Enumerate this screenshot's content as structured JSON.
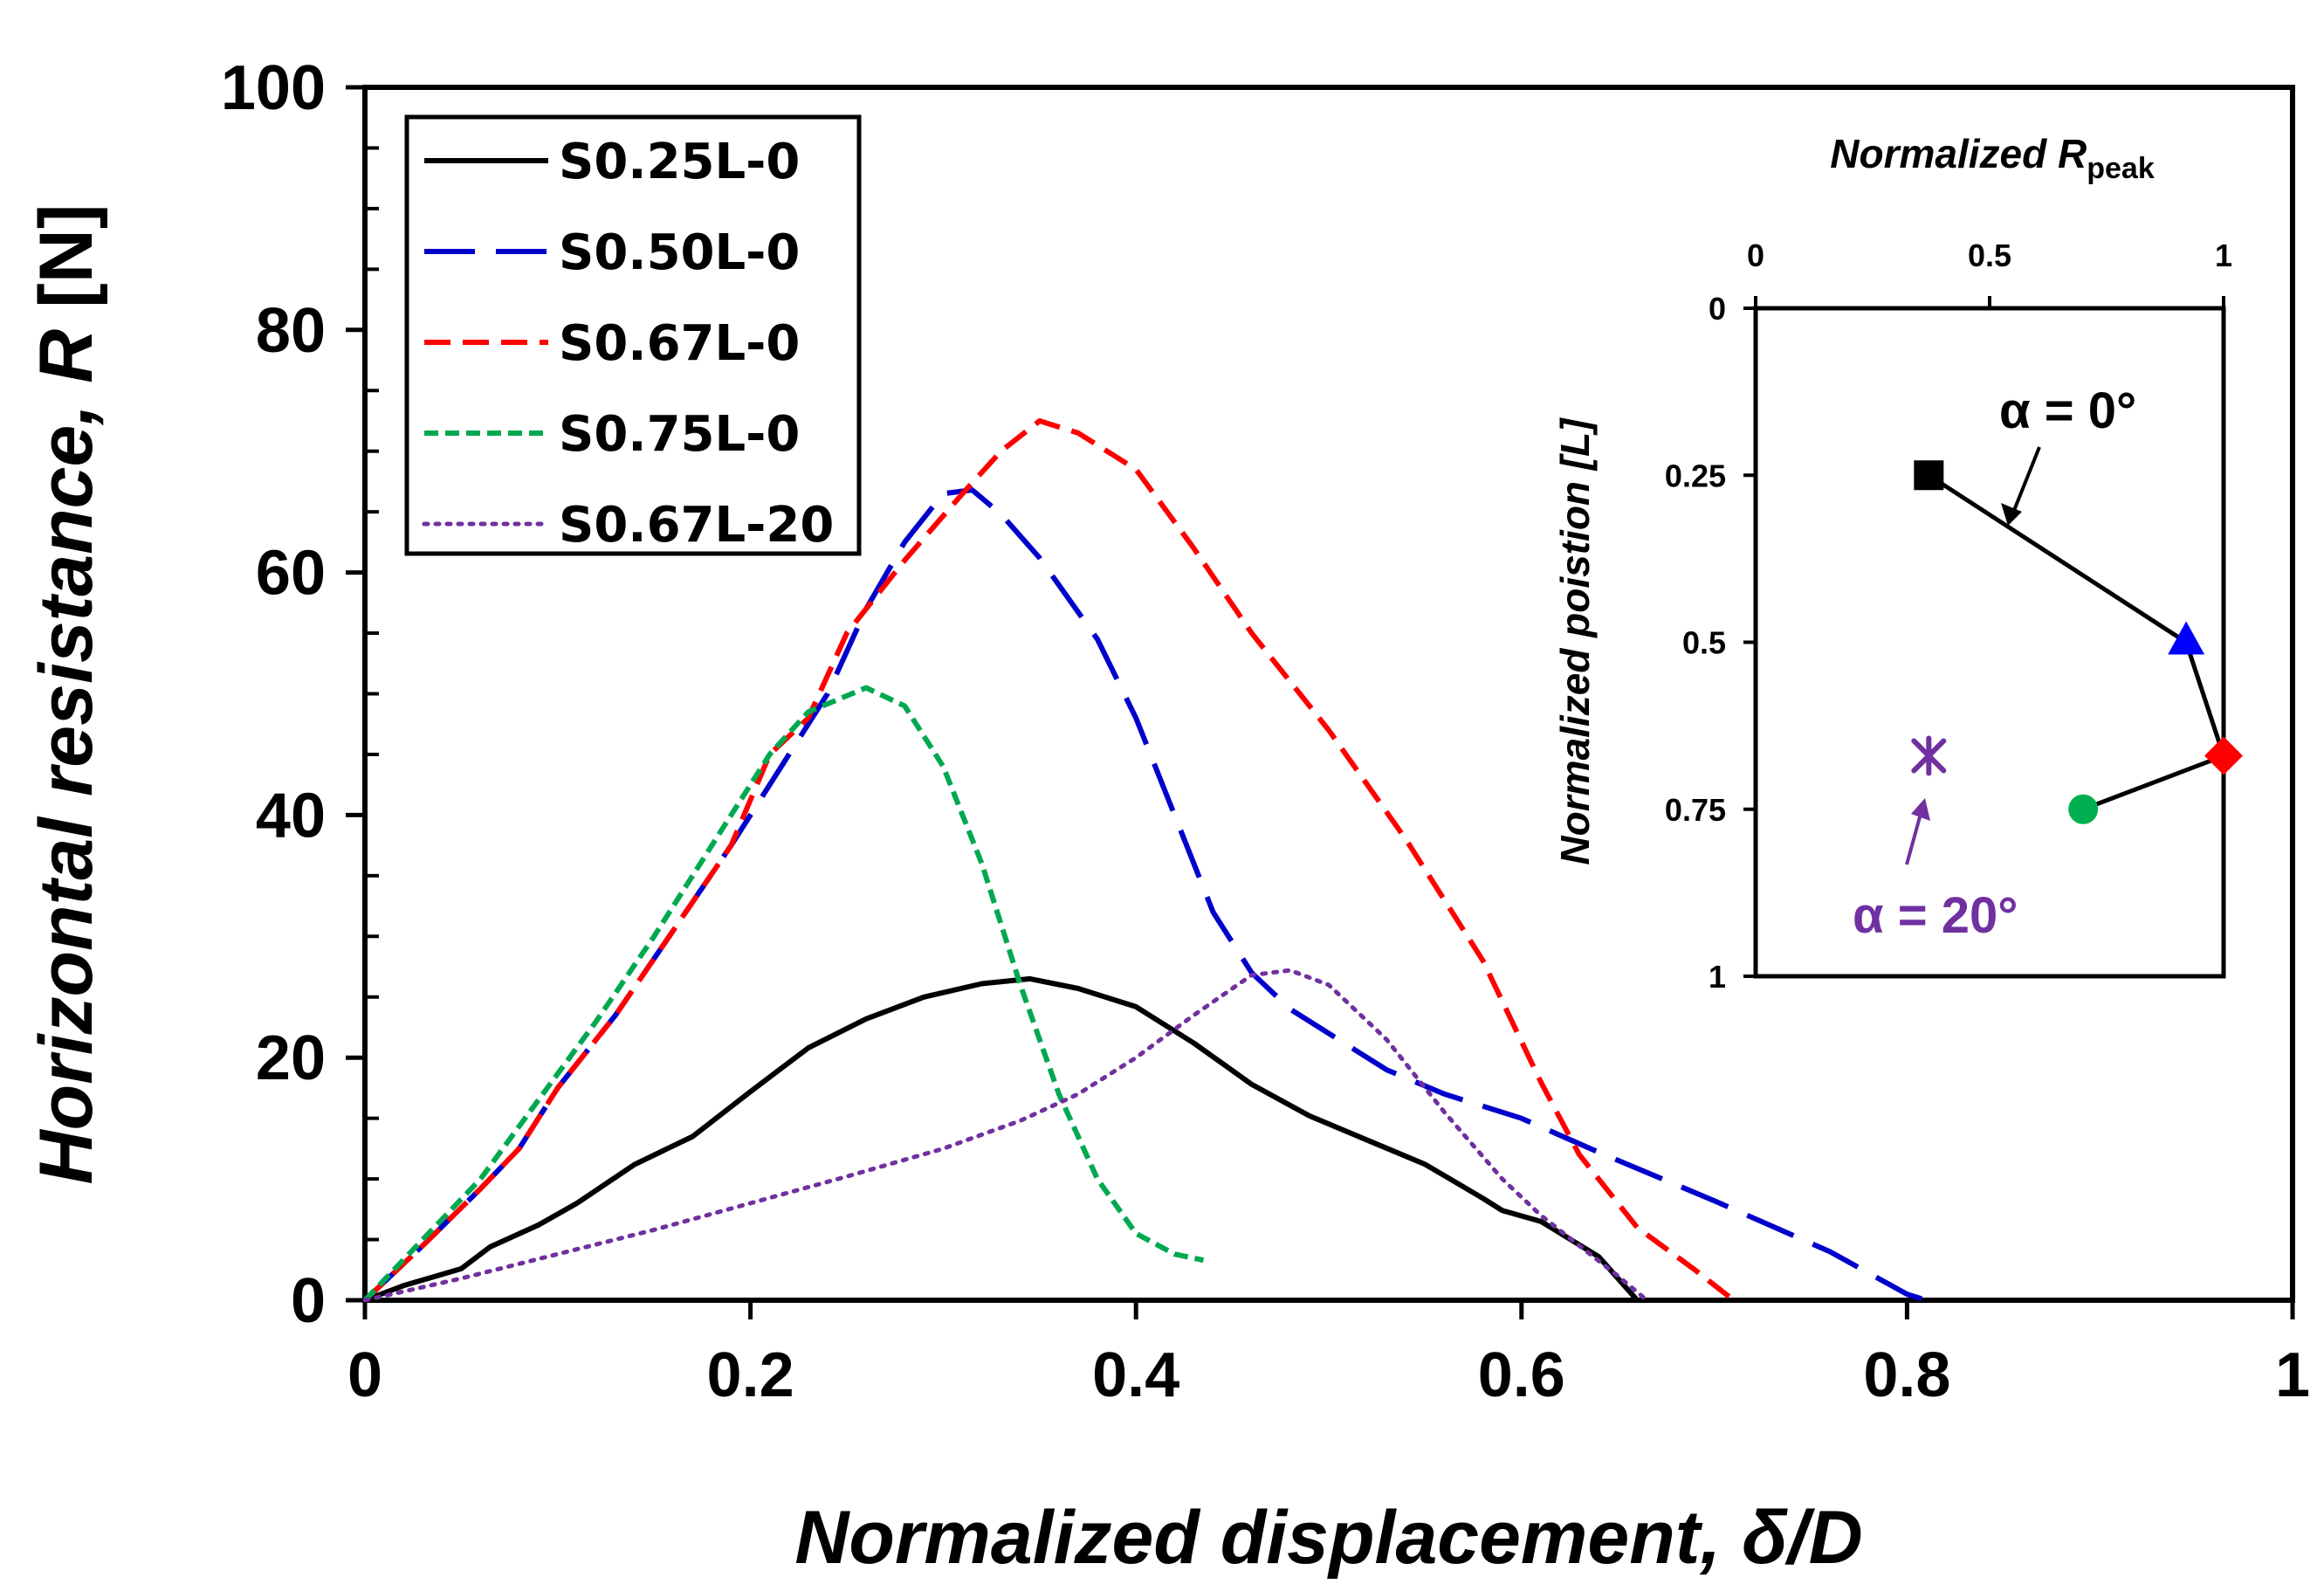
{
  "chart_data": [
    {
      "type": "line",
      "title": "",
      "xlabel": "Normalized displacement, δ/D",
      "ylabel_main": "Horizontal resistance, ",
      "ylabel_var": "R",
      "ylabel_unit": " [N]",
      "xlim": [
        0,
        1
      ],
      "ylim": [
        0,
        100
      ],
      "xticks": [
        0,
        0.2,
        0.4,
        0.6,
        0.8,
        1
      ],
      "xtick_labels": [
        "0",
        "0.2",
        "0.4",
        "0.6",
        "0.8",
        "1"
      ],
      "yticks": [
        0,
        20,
        40,
        60,
        80,
        100
      ],
      "ytick_labels": [
        "0",
        "20",
        "40",
        "60",
        "80",
        "100"
      ],
      "legend_position": "top-left",
      "grid": false,
      "series": [
        {
          "name": "S0.25L-0",
          "color": "#000000",
          "dash": "solid",
          "points": [
            [
              0,
              0
            ],
            [
              0.02,
              1.2
            ],
            [
              0.05,
              2.6
            ],
            [
              0.065,
              4.4
            ],
            [
              0.09,
              6.2
            ],
            [
              0.11,
              8
            ],
            [
              0.14,
              11.2
            ],
            [
              0.17,
              13.5
            ],
            [
              0.2,
              17.2
            ],
            [
              0.23,
              20.8
            ],
            [
              0.26,
              23.2
            ],
            [
              0.29,
              25
            ],
            [
              0.32,
              26.1
            ],
            [
              0.345,
              26.5
            ],
            [
              0.37,
              25.7
            ],
            [
              0.4,
              24.2
            ],
            [
              0.43,
              21.2
            ],
            [
              0.46,
              17.8
            ],
            [
              0.49,
              15.2
            ],
            [
              0.52,
              13.2
            ],
            [
              0.55,
              11.2
            ],
            [
              0.58,
              8.4
            ],
            [
              0.59,
              7.4
            ],
            [
              0.61,
              6.5
            ],
            [
              0.64,
              3.6
            ],
            [
              0.65,
              1.8
            ],
            [
              0.66,
              0
            ]
          ]
        },
        {
          "name": "S0.50L-0",
          "color": "#0000cc",
          "dash": "long-dash",
          "points": [
            [
              0,
              0
            ],
            [
              0.03,
              4.5
            ],
            [
              0.06,
              9.2
            ],
            [
              0.08,
              12.5
            ],
            [
              0.1,
              17.5
            ],
            [
              0.13,
              23.5
            ],
            [
              0.16,
              30.5
            ],
            [
              0.19,
              37.5
            ],
            [
              0.22,
              45
            ],
            [
              0.24,
              50
            ],
            [
              0.26,
              57
            ],
            [
              0.28,
              62.5
            ],
            [
              0.3,
              66.5
            ],
            [
              0.315,
              66.8
            ],
            [
              0.33,
              64.8
            ],
            [
              0.35,
              61.2
            ],
            [
              0.38,
              54.5
            ],
            [
              0.4,
              48
            ],
            [
              0.42,
              40
            ],
            [
              0.44,
              32
            ],
            [
              0.46,
              27
            ],
            [
              0.48,
              24
            ],
            [
              0.5,
              22
            ],
            [
              0.53,
              19
            ],
            [
              0.56,
              17
            ],
            [
              0.6,
              15
            ],
            [
              0.64,
              12.2
            ],
            [
              0.7,
              8.2
            ],
            [
              0.76,
              4
            ],
            [
              0.8,
              0.5
            ],
            [
              0.81,
              0
            ]
          ]
        },
        {
          "name": "S0.67L-0",
          "color": "#ff0000",
          "dash": "dash",
          "points": [
            [
              0,
              0
            ],
            [
              0.03,
              4.5
            ],
            [
              0.06,
              9.2
            ],
            [
              0.08,
              12.5
            ],
            [
              0.1,
              17.5
            ],
            [
              0.13,
              23.5
            ],
            [
              0.16,
              30.5
            ],
            [
              0.19,
              37.5
            ],
            [
              0.21,
              45
            ],
            [
              0.23,
              48
            ],
            [
              0.25,
              55
            ],
            [
              0.28,
              61
            ],
            [
              0.31,
              66.5
            ],
            [
              0.33,
              70
            ],
            [
              0.35,
              72.5
            ],
            [
              0.37,
              71.5
            ],
            [
              0.4,
              68.5
            ],
            [
              0.43,
              62
            ],
            [
              0.46,
              55
            ],
            [
              0.5,
              47
            ],
            [
              0.54,
              38
            ],
            [
              0.58,
              28
            ],
            [
              0.61,
              18
            ],
            [
              0.63,
              12
            ],
            [
              0.66,
              6
            ],
            [
              0.69,
              2.5
            ],
            [
              0.71,
              0
            ]
          ]
        },
        {
          "name": "S0.75L-0",
          "color": "#00a850",
          "dash": "short-dash",
          "points": [
            [
              0,
              0
            ],
            [
              0.03,
              5
            ],
            [
              0.06,
              10
            ],
            [
              0.09,
              16.5
            ],
            [
              0.12,
              23
            ],
            [
              0.15,
              30
            ],
            [
              0.18,
              37.5
            ],
            [
              0.21,
              45
            ],
            [
              0.23,
              48.5
            ],
            [
              0.26,
              50.5
            ],
            [
              0.28,
              49
            ],
            [
              0.3,
              44
            ],
            [
              0.32,
              36
            ],
            [
              0.34,
              26
            ],
            [
              0.36,
              17
            ],
            [
              0.38,
              10
            ],
            [
              0.4,
              5.5
            ],
            [
              0.42,
              3.8
            ],
            [
              0.435,
              3.3
            ]
          ]
        },
        {
          "name": "S0.67L-20",
          "color": "#7030a0",
          "dash": "dotted",
          "points": [
            [
              0,
              0
            ],
            [
              0.05,
              1.8
            ],
            [
              0.1,
              3.8
            ],
            [
              0.15,
              5.8
            ],
            [
              0.2,
              8
            ],
            [
              0.25,
              10.2
            ],
            [
              0.3,
              12.5
            ],
            [
              0.34,
              14.8
            ],
            [
              0.37,
              17
            ],
            [
              0.4,
              20
            ],
            [
              0.43,
              23.5
            ],
            [
              0.46,
              26.8
            ],
            [
              0.48,
              27.2
            ],
            [
              0.5,
              26
            ],
            [
              0.53,
              21.5
            ],
            [
              0.56,
              15.5
            ],
            [
              0.59,
              10
            ],
            [
              0.61,
              7
            ],
            [
              0.63,
              4.5
            ],
            [
              0.65,
              2
            ],
            [
              0.665,
              0
            ]
          ]
        }
      ]
    },
    {
      "type": "scatter",
      "title": "Normalized ",
      "title_var": "R",
      "title_sub": "peak",
      "xlabel": "Normalized ",
      "ylabel": "Normalized poistion [",
      "ylabel_var": "L",
      "ylabel_end": "]",
      "xlim": [
        0,
        1
      ],
      "ylim": [
        1,
        0
      ],
      "xticks": [
        0,
        0.5,
        1
      ],
      "xtick_labels": [
        "0",
        "0.5",
        "1"
      ],
      "yticks": [
        0,
        0.25,
        0.5,
        0.75,
        1
      ],
      "ytick_labels": [
        "0",
        "0.25",
        "0.5",
        "0.75",
        "1"
      ],
      "connected_series": {
        "name": "α = 0°",
        "color": "#000000",
        "points": [
          {
            "x": 0.37,
            "y": 0.25,
            "marker": "square",
            "color": "#000000"
          },
          {
            "x": 0.92,
            "y": 0.5,
            "marker": "triangle",
            "color": "#0000ff"
          },
          {
            "x": 1.0,
            "y": 0.67,
            "marker": "diamond",
            "color": "#ff0000"
          },
          {
            "x": 0.7,
            "y": 0.75,
            "marker": "circle",
            "color": "#00b050"
          }
        ]
      },
      "isolated_point": {
        "name": "α = 20°",
        "x": 0.37,
        "y": 0.67,
        "marker": "star",
        "color": "#7030a0"
      },
      "annotations": {
        "alpha0": "α = 0°",
        "alpha20": "α = 20°"
      }
    }
  ]
}
